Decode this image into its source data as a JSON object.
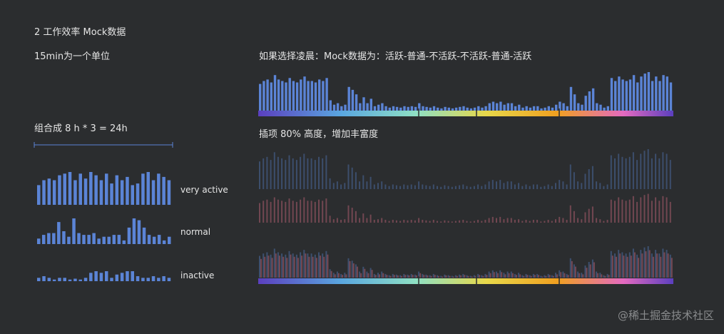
{
  "title": "2 工作效率 Mock数据",
  "unit_note": "15min为一个单位",
  "combine_note": "组合成 8 h * 3 = 24h",
  "mock_note": "如果选择凌晨：Mock数据为：活跃-普通-不活跃-不活跃-普通-活跃",
  "interp_note": "插项 80% 高度，增加丰富度",
  "watermark": "@稀土掘金技术社区",
  "colors": {
    "bar": "#5b84d6",
    "bar_dim": "#3e5273",
    "bar_red": "#7a4a55",
    "bg": "#2b2d2f",
    "gradient": [
      "#5b3fbf",
      "#5aa7e0",
      "#8fe0c4",
      "#e8d84a",
      "#f0a020",
      "#e46ac0",
      "#5b3fbf"
    ]
  },
  "chart_data": [
    {
      "type": "bar",
      "name": "very active",
      "label": "very active",
      "values": [
        24,
        30,
        32,
        30,
        36,
        38,
        40,
        30,
        38,
        32,
        40,
        36,
        30,
        38,
        26,
        36,
        30,
        34,
        24,
        26,
        38,
        40,
        30,
        38,
        34,
        30
      ]
    },
    {
      "type": "bar",
      "name": "normal",
      "label": "normal",
      "values": [
        6,
        10,
        12,
        12,
        24,
        14,
        8,
        28,
        12,
        10,
        10,
        12,
        6,
        8,
        8,
        10,
        10,
        4,
        18,
        28,
        26,
        18,
        10,
        8,
        10,
        4,
        8
      ]
    },
    {
      "type": "bar",
      "name": "inactive",
      "label": "inactive",
      "values": [
        4,
        6,
        4,
        2,
        4,
        4,
        2,
        3,
        2,
        4,
        10,
        12,
        10,
        12,
        4,
        8,
        10,
        12,
        12,
        6,
        4,
        4,
        6,
        4,
        6,
        4
      ]
    },
    {
      "type": "bar",
      "name": "mock_full_day",
      "values": [
        36,
        40,
        42,
        38,
        48,
        42,
        40,
        38,
        44,
        40,
        38,
        42,
        46,
        40,
        40,
        38,
        42,
        40,
        44,
        14,
        8,
        10,
        6,
        8,
        32,
        28,
        22,
        10,
        18,
        10,
        16,
        6,
        8,
        10,
        6,
        4,
        6,
        5,
        4,
        6,
        5,
        6,
        5,
        10,
        6,
        5,
        4,
        6,
        4,
        3,
        5,
        4,
        3,
        4,
        5,
        6,
        4,
        3,
        4,
        6,
        4,
        6,
        10,
        12,
        10,
        12,
        8,
        10,
        10,
        6,
        8,
        4,
        6,
        4,
        6,
        6,
        3,
        4,
        6,
        4,
        8,
        12,
        10,
        6,
        32,
        22,
        10,
        8,
        20,
        26,
        30,
        10,
        8,
        4,
        6,
        44,
        40,
        46,
        42,
        40,
        42,
        48,
        38,
        46,
        50,
        52,
        40,
        46,
        40,
        48,
        46,
        38
      ]
    },
    {
      "type": "bar",
      "name": "interp_blue",
      "values": [
        36,
        40,
        42,
        38,
        48,
        42,
        40,
        38,
        44,
        40,
        38,
        42,
        46,
        40,
        40,
        38,
        42,
        40,
        44,
        14,
        8,
        10,
        6,
        8,
        32,
        28,
        22,
        10,
        18,
        10,
        16,
        6,
        8,
        10,
        6,
        4,
        6,
        5,
        4,
        6,
        5,
        6,
        5,
        10,
        6,
        5,
        4,
        6,
        4,
        3,
        5,
        4,
        3,
        4,
        5,
        6,
        4,
        3,
        4,
        6,
        4,
        6,
        10,
        12,
        10,
        12,
        8,
        10,
        10,
        6,
        8,
        4,
        6,
        4,
        6,
        6,
        3,
        4,
        6,
        4,
        8,
        12,
        10,
        6,
        32,
        22,
        10,
        8,
        20,
        26,
        30,
        10,
        8,
        4,
        6,
        44,
        40,
        46,
        42,
        40,
        42,
        48,
        38,
        46,
        50,
        52,
        40,
        46,
        40,
        48,
        46,
        38
      ]
    },
    {
      "type": "bar",
      "name": "interp_red",
      "values": [
        34,
        38,
        40,
        36,
        44,
        40,
        38,
        36,
        42,
        38,
        36,
        40,
        44,
        38,
        38,
        36,
        40,
        38,
        42,
        12,
        6,
        8,
        5,
        6,
        30,
        26,
        20,
        8,
        16,
        8,
        14,
        5,
        6,
        8,
        5,
        3,
        5,
        4,
        3,
        5,
        4,
        5,
        4,
        8,
        5,
        4,
        3,
        5,
        3,
        2,
        4,
        3,
        2,
        3,
        4,
        5,
        3,
        2,
        3,
        5,
        3,
        5,
        8,
        10,
        8,
        10,
        6,
        8,
        8,
        5,
        6,
        3,
        5,
        3,
        5,
        5,
        2,
        3,
        5,
        3,
        6,
        10,
        8,
        5,
        30,
        20,
        8,
        6,
        18,
        24,
        28,
        8,
        6,
        3,
        5,
        40,
        38,
        44,
        40,
        38,
        40,
        46,
        36,
        44,
        48,
        50,
        38,
        44,
        38,
        46,
        44,
        36
      ]
    }
  ]
}
